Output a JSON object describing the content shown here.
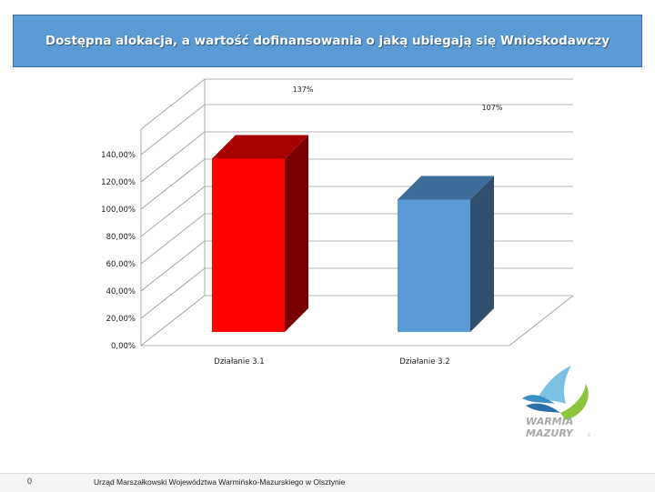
{
  "slide": {
    "title": "Dostępna alokacja, a wartość dofinansowania o jaką ubiegają się Wnioskodawczy",
    "page_number": "0",
    "footer_text": "Urząd Marszałkowski Województwa Warmińsko-Mazurskiego w Olsztynie",
    "logo_text_line1": "WARMIA",
    "logo_text_line2": "MAZURY",
    "logo_mark": "c"
  },
  "chart_data": {
    "type": "bar",
    "title": "",
    "xlabel": "",
    "ylabel": "",
    "categories": [
      "Działanie 3.1",
      "Działanie 3.2"
    ],
    "values": [
      137,
      107
    ],
    "data_labels": [
      "137%",
      "107%"
    ],
    "ylim": [
      0,
      140
    ],
    "yticks": [
      "0,00%",
      "20,00%",
      "40,00%",
      "60,00%",
      "80,00%",
      "100,00%",
      "120,00%",
      "140,00%"
    ],
    "grid": true,
    "legend": "none",
    "colors": {
      "bar1_front": "#ff0000",
      "bar1_top": "#a80000",
      "bar1_side": "#7a0000",
      "bar2_front": "#5b9bd5",
      "bar2_top": "#3d6b9a",
      "bar2_side": "#2e4f6e",
      "grid": "#9a9a9a",
      "wall": "#ffffff"
    }
  }
}
